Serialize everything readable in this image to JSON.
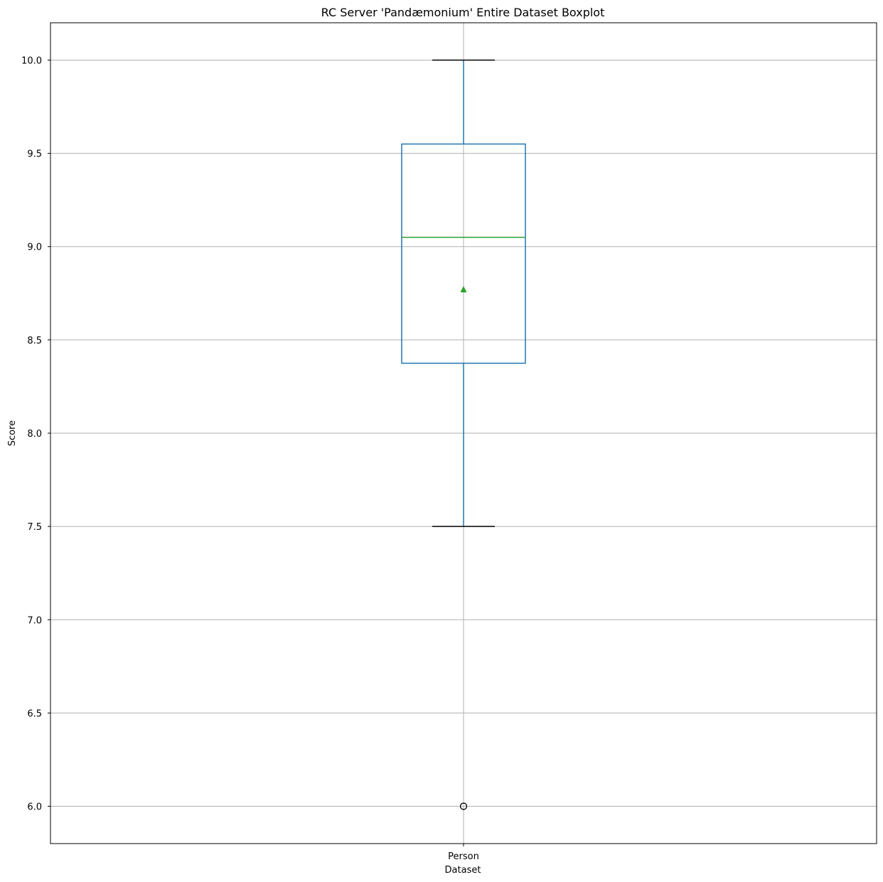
{
  "chart_data": {
    "type": "box",
    "title": "RC Server 'Pandæmonium' Entire Dataset Boxplot",
    "xlabel": "Dataset",
    "ylabel": "Score",
    "categories": [
      "Person"
    ],
    "ylim": [
      5.8,
      10.2
    ],
    "yticks": [
      6.0,
      6.5,
      7.0,
      7.5,
      8.0,
      8.5,
      9.0,
      9.5,
      10.0
    ],
    "ytick_labels": [
      "6.0",
      "6.5",
      "7.0",
      "7.5",
      "8.0",
      "8.5",
      "9.0",
      "9.5",
      "10.0"
    ],
    "grid": true,
    "boxes": [
      {
        "category": "Person",
        "whisker_low": 7.5,
        "q1": 8.375,
        "median": 9.05,
        "q3": 9.55,
        "whisker_high": 10.0,
        "mean": 8.77,
        "outliers": [
          6.0
        ]
      }
    ],
    "colors": {
      "box": "#1f77b4",
      "median": "#2ca02c",
      "mean_marker": "#2ca02c",
      "whisker_cap": "#000000",
      "outlier": "#000000",
      "grid": "#b0b0b0"
    }
  }
}
